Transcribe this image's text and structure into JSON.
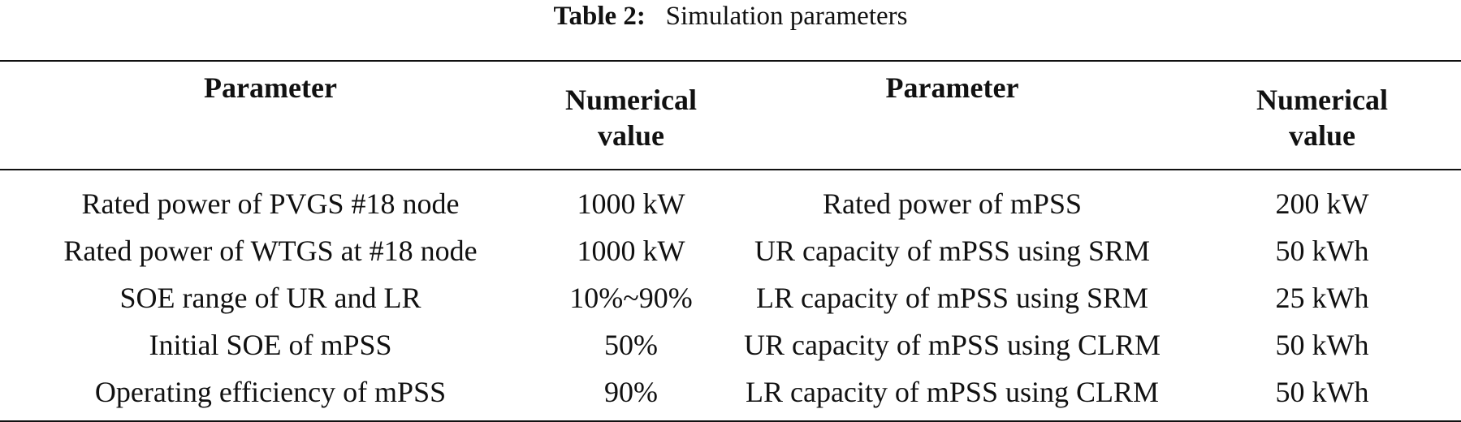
{
  "caption": {
    "label": "Table 2:",
    "title": "Simulation parameters"
  },
  "table": {
    "headers": [
      {
        "line1": "Parameter",
        "line2": ""
      },
      {
        "line1": "Numerical",
        "line2": "value"
      },
      {
        "line1": "Parameter",
        "line2": ""
      },
      {
        "line1": "Numerical",
        "line2": "value"
      }
    ],
    "rows": [
      [
        "Rated power of PVGS #18 node",
        "1000 kW",
        "Rated power of mPSS",
        "200 kW"
      ],
      [
        "Rated power of WTGS at #18 node",
        "1000 kW",
        "UR capacity of mPSS using SRM",
        "50 kWh"
      ],
      [
        "SOE range of UR and LR",
        "10%~90%",
        "LR capacity of mPSS using SRM",
        "25 kWh"
      ],
      [
        "Initial SOE of mPSS",
        "50%",
        "UR capacity of mPSS using CLRM",
        "50 kWh"
      ],
      [
        "Operating efficiency of mPSS",
        "90%",
        "LR capacity of mPSS using CLRM",
        "50 kWh"
      ]
    ]
  }
}
